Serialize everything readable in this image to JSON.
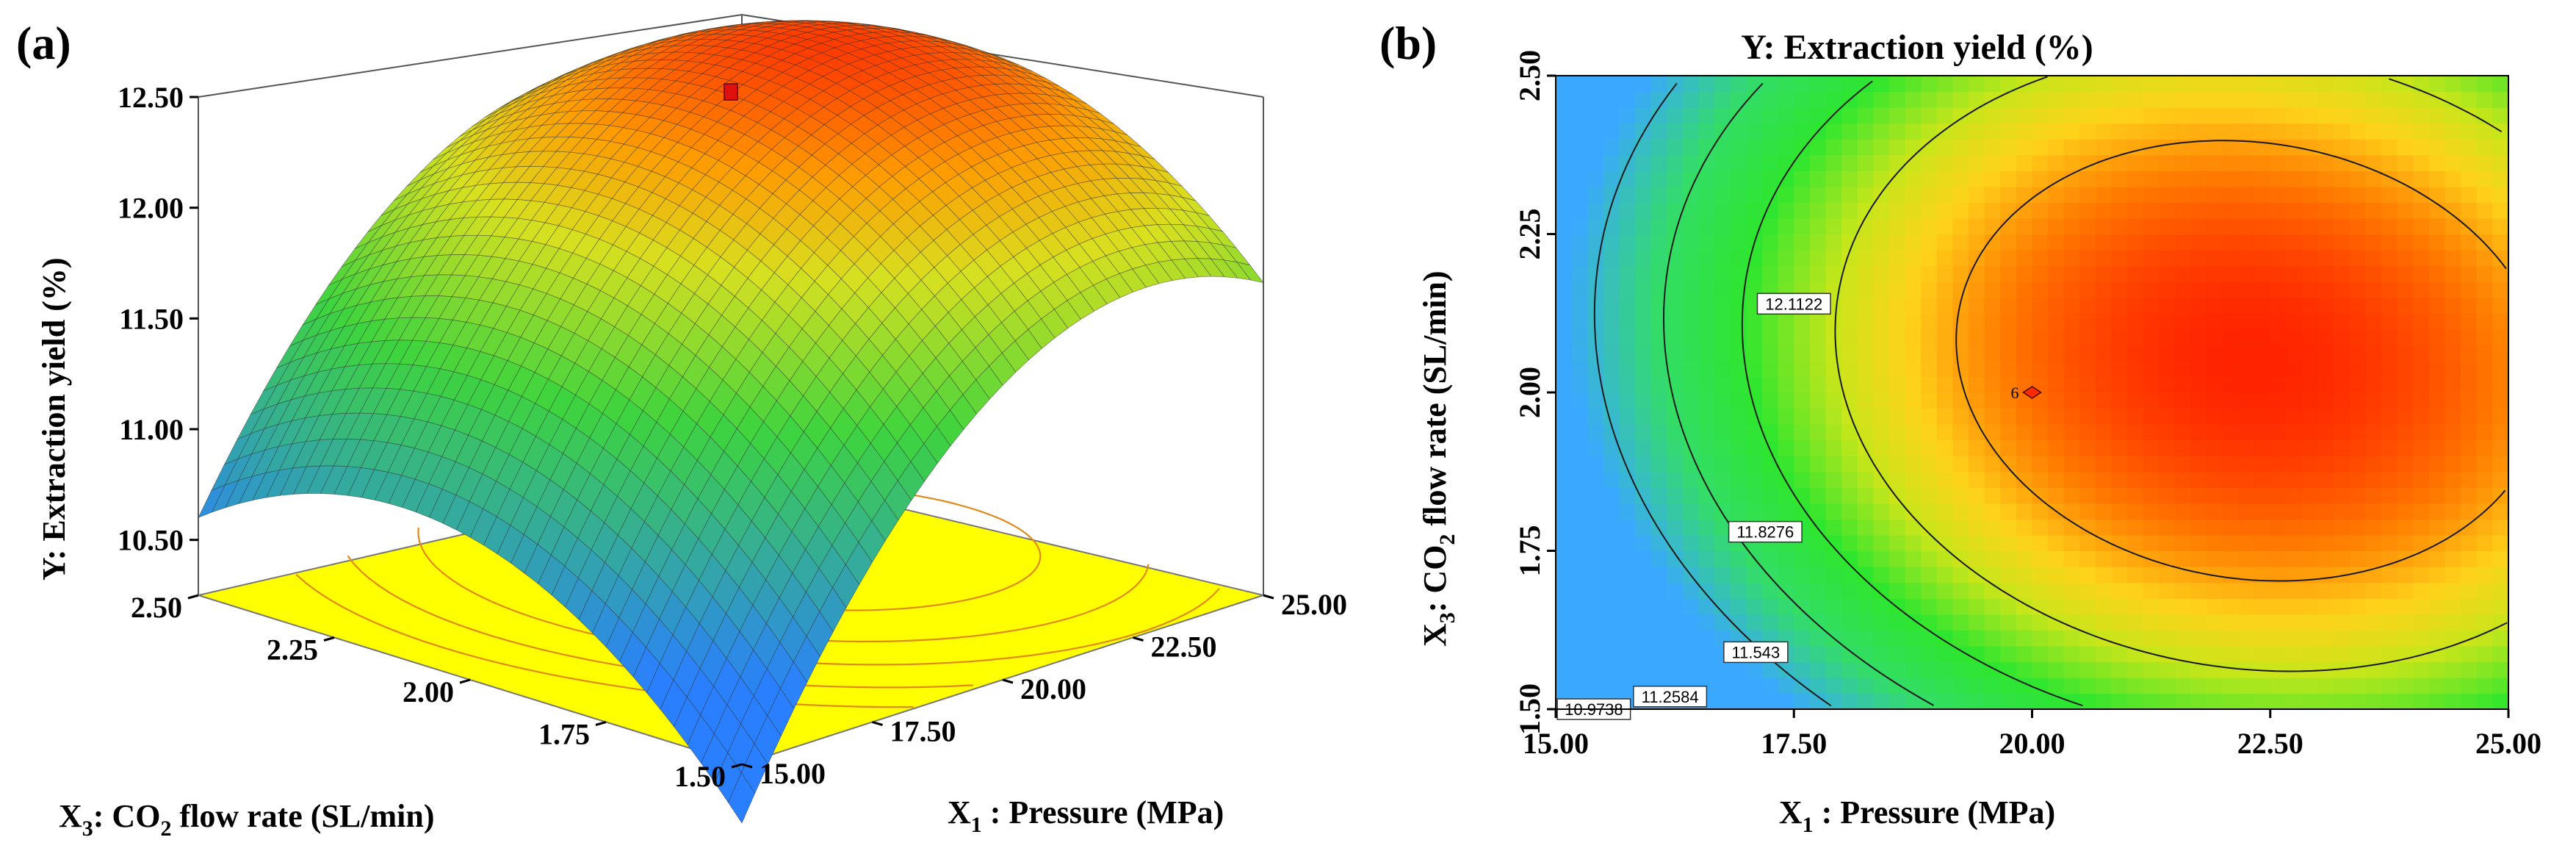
{
  "chart_data": [
    {
      "panel": "(a)",
      "type": "surface",
      "zlabel": "Y: Extraction yield (%)",
      "xlabel_prefix": "X",
      "xlabel_sub": "1",
      "xlabel_rest": " : Pressure (MPa)",
      "ylabel_prefix": "X",
      "ylabel_sub": "3",
      "ylabel_mid": ": CO",
      "ylabel_sub2": "2",
      "ylabel_rest": " flow rate (SL/min)",
      "z_ticks": [
        "12.50",
        "12.00",
        "11.50",
        "11.00",
        "10.50"
      ],
      "x_ticks": [
        "15.00",
        "17.50",
        "20.00",
        "22.50",
        "25.00"
      ],
      "y_ticks": [
        "2.50",
        "2.25",
        "2.00",
        "1.75",
        "1.50"
      ],
      "xlim": [
        15,
        25
      ],
      "ylim": [
        1.5,
        2.5
      ],
      "zlim": [
        10.25,
        12.5
      ],
      "colors": {
        "low": "#2a7fff",
        "mid": "#3ed43e",
        "high": "#ff2a00",
        "floor": "#ffff00",
        "floor_contour": "#e08a1a"
      }
    },
    {
      "panel": "(b)",
      "type": "contour",
      "title": "Y: Extraction yield (%)",
      "xlabel_prefix": "X",
      "xlabel_sub": "1",
      "xlabel_rest": " : Pressure (MPa)",
      "ylabel_prefix": "X",
      "ylabel_sub": "3",
      "ylabel_mid": ": CO",
      "ylabel_sub2": "2",
      "ylabel_rest": " flow rate (SL/min)",
      "x_ticks": [
        "15.00",
        "17.50",
        "20.00",
        "22.50",
        "25.00"
      ],
      "y_ticks": [
        "1.50",
        "1.75",
        "2.00",
        "2.25",
        "2.50"
      ],
      "xlim": [
        15,
        25
      ],
      "ylim": [
        1.5,
        2.5
      ],
      "contour_labels": [
        "12.1122",
        "11.8276",
        "11.543",
        "11.2584",
        "10.9738"
      ],
      "contour_levels": [
        12.1122,
        11.8276,
        11.543,
        11.2584,
        10.9738
      ],
      "design_point": {
        "x": 20,
        "y": 2.0,
        "label": "6"
      },
      "optimum": {
        "x": 22.3,
        "y": 2.05
      },
      "colors": {
        "low": "#3aa8ff",
        "mid": "#2ee62e",
        "high": "#ff1a00"
      }
    }
  ]
}
